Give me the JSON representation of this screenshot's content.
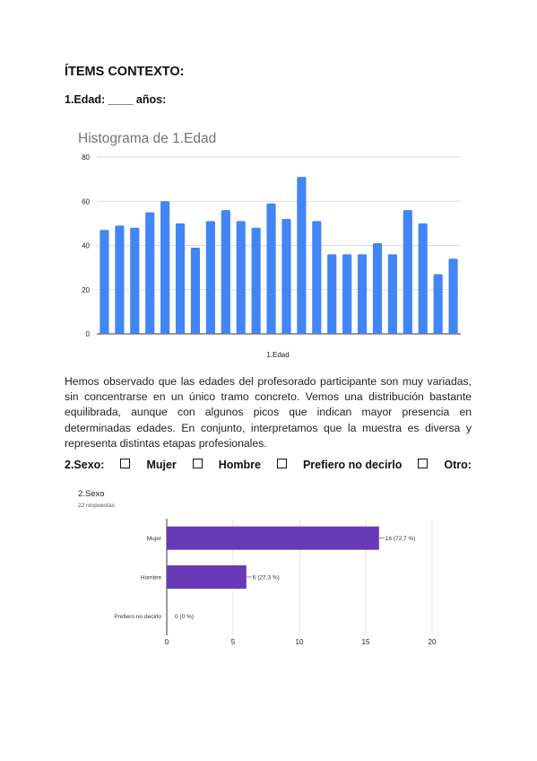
{
  "doc": {
    "section_heading": "ÍTEMS CONTEXTO:",
    "q1_label": "1.Edad: ____ años:",
    "analysis_paragraph": "Hemos observado que las edades del profesorado participante son muy variadas, sin concentrarse en un único tramo concreto. Vemos una distribución bastante equilibrada, aunque con algunos picos que indican mayor presencia en determinadas edades. En conjunto, interpretamos que la muestra es diversa y representa distintas etapas profesionales.",
    "q2": {
      "label": "2.Sexo:",
      "options": [
        "Mujer",
        "Hombre",
        "Prefiero no decirlo",
        "Otro:"
      ]
    }
  },
  "chart_data": [
    {
      "type": "bar",
      "title": "Histograma de 1.Edad",
      "xlabel": "1.Edad",
      "ylabel": "",
      "ylim": [
        0,
        80
      ],
      "yticks": [
        0,
        20,
        40,
        60,
        80
      ],
      "values": [
        47,
        49,
        48,
        55,
        60,
        50,
        39,
        51,
        56,
        51,
        48,
        59,
        52,
        71,
        51,
        36,
        36,
        36,
        41,
        36,
        56,
        50,
        27,
        34
      ],
      "color": "#4285f4",
      "grid": true
    },
    {
      "type": "bar",
      "orientation": "horizontal",
      "title": "2.Sexo",
      "subtitle": "22 respuestas",
      "categories": [
        "Mujer",
        "Hombre",
        "Prefiero no decirlo"
      ],
      "values": [
        16,
        6,
        0
      ],
      "value_labels": [
        "16 (72,7 %)",
        "6 (27,3 %)",
        "0 (0 %)"
      ],
      "xlim": [
        0,
        20
      ],
      "xticks": [
        0,
        5,
        10,
        15,
        20
      ],
      "color": "#673ab7",
      "grid": true
    }
  ]
}
